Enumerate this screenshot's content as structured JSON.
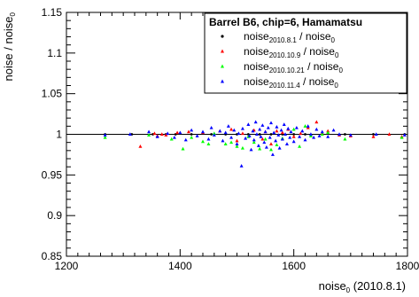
{
  "chart_data": {
    "type": "scatter",
    "title": "",
    "xlabel": {
      "main": "noise",
      "sub": "0",
      "rest": " (2010.8.1)"
    },
    "ylabel": {
      "main": "noise / noise",
      "sub": "0"
    },
    "xlim": [
      1200,
      1800
    ],
    "ylim": [
      0.85,
      1.15
    ],
    "x_ticks": [
      1200,
      1400,
      1600,
      1800
    ],
    "x_tick_labels": [
      "1200",
      "1400",
      "1600",
      "1800"
    ],
    "y_ticks": [
      0.85,
      0.9,
      0.95,
      1,
      1.05,
      1.1,
      1.15
    ],
    "y_tick_labels": [
      "0.85",
      "0.9",
      "0.95",
      "1",
      "1.05",
      "1.1",
      "1.15"
    ],
    "reference_line": 1,
    "grid": false,
    "legend": {
      "title": "Barrel B6, chip=6, Hamamatsu",
      "placement": "top-right",
      "entries": [
        {
          "main": "noise",
          "sub": "2010.8.1",
          "rest": " / noise",
          "sub2": "0",
          "color": "#000000",
          "marker": "dot"
        },
        {
          "main": "noise",
          "sub": "2010.10.9",
          "rest": " / noise",
          "sub2": "0",
          "color": "#ff0000",
          "marker": "triangle"
        },
        {
          "main": "noise",
          "sub": "2010.10.21",
          "rest": " / noise",
          "sub2": "0",
          "color": "#00ff00",
          "marker": "triangle"
        },
        {
          "main": "noise",
          "sub": "2010.11.4",
          "rest": " / noise",
          "sub2": "0",
          "color": "#0000ff",
          "marker": "triangle"
        }
      ]
    },
    "series": [
      {
        "name": "noise2010.8.1 / noise0",
        "color": "#000000",
        "points": [
          [
            1268,
            1.0
          ],
          [
            1315,
            1.0
          ],
          [
            1352,
            1.0
          ],
          [
            1375,
            1.0
          ],
          [
            1392,
            1.0
          ],
          [
            1420,
            1.0
          ],
          [
            1455,
            1.0
          ],
          [
            1480,
            1.0
          ],
          [
            1500,
            1.0
          ],
          [
            1520,
            1.0
          ],
          [
            1540,
            1.0
          ],
          [
            1560,
            1.0
          ],
          [
            1580,
            1.0
          ],
          [
            1600,
            1.0
          ],
          [
            1620,
            1.0
          ],
          [
            1650,
            1.0
          ],
          [
            1690,
            1.0
          ],
          [
            1740,
            1.0
          ],
          [
            1795,
            1.0
          ]
        ]
      },
      {
        "name": "noise2010.10.9 / noise0",
        "color": "#ff0000",
        "points": [
          [
            1355,
            1.001
          ],
          [
            1360,
            0.998
          ],
          [
            1368,
            1.0
          ],
          [
            1375,
            0.999
          ],
          [
            1395,
            1.002
          ],
          [
            1415,
            1.003
          ],
          [
            1440,
            1.002
          ],
          [
            1470,
            1.004
          ],
          [
            1490,
            1.006
          ],
          [
            1500,
            0.992
          ],
          [
            1510,
            1.001
          ],
          [
            1530,
            1.005
          ],
          [
            1545,
            0.994
          ],
          [
            1550,
            1.003
          ],
          [
            1560,
            0.988
          ],
          [
            1570,
            1.004
          ],
          [
            1580,
            1.002
          ],
          [
            1590,
            1.006
          ],
          [
            1600,
            0.997
          ],
          [
            1612,
            1.001
          ],
          [
            1625,
            1.008
          ],
          [
            1640,
            1.015
          ],
          [
            1650,
            1.001
          ],
          [
            1660,
            1.004
          ],
          [
            1680,
            0.999
          ],
          [
            1700,
            0.998
          ],
          [
            1740,
            0.997
          ],
          [
            1768,
            1.0
          ],
          [
            1790,
            0.997
          ],
          [
            1330,
            0.985
          ]
        ]
      },
      {
        "name": "noise2010.10.21 / noise0",
        "color": "#00ff00",
        "points": [
          [
            1268,
            0.996
          ],
          [
            1345,
            0.999
          ],
          [
            1385,
            0.994
          ],
          [
            1405,
            0.982
          ],
          [
            1420,
            0.996
          ],
          [
            1440,
            0.991
          ],
          [
            1450,
            0.988
          ],
          [
            1460,
            1.001
          ],
          [
            1480,
            0.988
          ],
          [
            1490,
            0.99
          ],
          [
            1500,
            0.985
          ],
          [
            1510,
            0.983
          ],
          [
            1520,
            0.997
          ],
          [
            1530,
            0.99
          ],
          [
            1540,
            0.982
          ],
          [
            1550,
            0.994
          ],
          [
            1560,
            0.981
          ],
          [
            1570,
            0.987
          ],
          [
            1580,
            0.995
          ],
          [
            1600,
            1.006
          ],
          [
            1610,
            0.985
          ],
          [
            1620,
            1.01
          ],
          [
            1630,
            0.998
          ],
          [
            1660,
            1.002
          ],
          [
            1690,
            0.994
          ],
          [
            1790,
            0.996
          ],
          [
            1650,
            1.0
          ]
        ]
      },
      {
        "name": "noise2010.11.4 / noise0",
        "color": "#0000ff",
        "points": [
          [
            1268,
            0.999
          ],
          [
            1312,
            1.0
          ],
          [
            1345,
            1.003
          ],
          [
            1360,
            0.997
          ],
          [
            1378,
            1.001
          ],
          [
            1390,
            0.996
          ],
          [
            1400,
            1.002
          ],
          [
            1410,
            0.993
          ],
          [
            1420,
            1.005
          ],
          [
            1430,
            0.998
          ],
          [
            1440,
            1.003
          ],
          [
            1450,
            0.994
          ],
          [
            1455,
            1.008
          ],
          [
            1460,
            0.999
          ],
          [
            1470,
            1.004
          ],
          [
            1475,
            0.992
          ],
          [
            1480,
            1.002
          ],
          [
            1485,
            1.01
          ],
          [
            1490,
            0.996
          ],
          [
            1495,
            1.005
          ],
          [
            1500,
            0.988
          ],
          [
            1503,
            1.001
          ],
          [
            1508,
            0.961
          ],
          [
            1510,
            1.007
          ],
          [
            1515,
            0.995
          ],
          [
            1520,
            1.012
          ],
          [
            1522,
            0.998
          ],
          [
            1525,
            0.981
          ],
          [
            1528,
            1.004
          ],
          [
            1530,
            0.993
          ],
          [
            1533,
            1.015
          ],
          [
            1535,
            1.0
          ],
          [
            1538,
            0.986
          ],
          [
            1540,
            1.006
          ],
          [
            1542,
            0.997
          ],
          [
            1545,
            1.011
          ],
          [
            1548,
            0.99
          ],
          [
            1550,
            1.003
          ],
          [
            1552,
            0.984
          ],
          [
            1555,
            1.008
          ],
          [
            1558,
            0.996
          ],
          [
            1560,
            1.014
          ],
          [
            1563,
            0.975
          ],
          [
            1565,
            1.002
          ],
          [
            1568,
            0.992
          ],
          [
            1570,
            1.009
          ],
          [
            1573,
            0.999
          ],
          [
            1575,
            0.983
          ],
          [
            1578,
            1.005
          ],
          [
            1580,
            0.994
          ],
          [
            1583,
            1.012
          ],
          [
            1585,
            1.0
          ],
          [
            1588,
            0.988
          ],
          [
            1590,
            1.007
          ],
          [
            1593,
            0.996
          ],
          [
            1595,
            1.003
          ],
          [
            1600,
            0.991
          ],
          [
            1605,
            1.008
          ],
          [
            1610,
            0.997
          ],
          [
            1615,
            1.004
          ],
          [
            1620,
            0.993
          ],
          [
            1625,
            1.01
          ],
          [
            1630,
            1.0
          ],
          [
            1635,
            0.996
          ],
          [
            1640,
            1.006
          ],
          [
            1645,
            0.998
          ],
          [
            1650,
            1.003
          ],
          [
            1660,
            0.997
          ],
          [
            1670,
            1.005
          ],
          [
            1680,
            1.0
          ],
          [
            1700,
            0.999
          ],
          [
            1745,
            1.0
          ],
          [
            1795,
            0.999
          ]
        ]
      }
    ]
  }
}
